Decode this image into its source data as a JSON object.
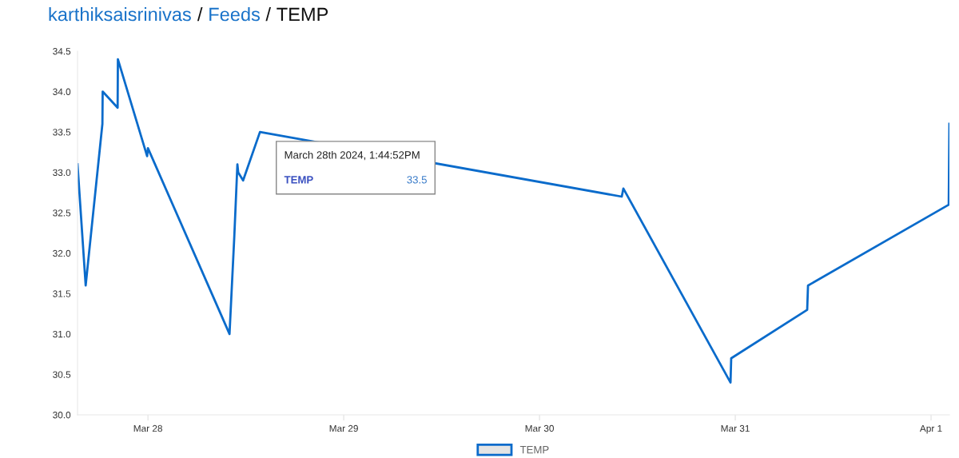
{
  "chart_data": {
    "type": "line",
    "title": "karthiksaisrinivas / Feeds / TEMP",
    "x": [
      "2024-03-27T15:22",
      "2024-03-27T16:22",
      "2024-03-27T18:25",
      "2024-03-27T18:27",
      "2024-03-27T20:17",
      "2024-03-27T20:19",
      "2024-03-27T23:54",
      "2024-03-28T00:00",
      "2024-03-28T10:00",
      "2024-03-28T10:35",
      "2024-03-28T10:58",
      "2024-03-28T11:04",
      "2024-03-28T11:40",
      "2024-03-28T13:44",
      "2024-03-30T10:05",
      "2024-03-30T10:17",
      "2024-03-30T23:25",
      "2024-03-30T23:30",
      "2024-03-31T08:49",
      "2024-03-31T08:55",
      "2024-04-01T02:10",
      "2024-04-01T02:15"
    ],
    "series": [
      {
        "name": "TEMP",
        "color": "#0a6bcb",
        "values": [
          33.1,
          31.6,
          33.6,
          34.0,
          33.8,
          34.4,
          33.2,
          33.3,
          31.0,
          32.2,
          33.1,
          33.0,
          32.9,
          33.5,
          32.7,
          32.8,
          30.4,
          30.7,
          31.3,
          31.6,
          32.6,
          33.6
        ]
      }
    ],
    "xlim": [
      "2024-03-27T15:22",
      "2024-04-01T02:15"
    ],
    "xticks": [
      {
        "value": "2024-03-28",
        "label": "Mar 28"
      },
      {
        "value": "2024-03-29",
        "label": "Mar 29"
      },
      {
        "value": "2024-03-30",
        "label": "Mar 30"
      },
      {
        "value": "2024-03-31",
        "label": "Mar 31"
      },
      {
        "value": "2024-04-01",
        "label": "Apr 1"
      }
    ],
    "ylim": [
      30,
      34.5
    ],
    "yticks": [
      {
        "value": 30,
        "label": "30.0"
      },
      {
        "value": 30.5,
        "label": "30.5"
      },
      {
        "value": 31,
        "label": "31.0"
      },
      {
        "value": 31.5,
        "label": "31.5"
      },
      {
        "value": 32,
        "label": "32.0"
      },
      {
        "value": 32.5,
        "label": "32.5"
      },
      {
        "value": 33,
        "label": "33.0"
      },
      {
        "value": 33.5,
        "label": "33.5"
      },
      {
        "value": 34,
        "label": "34.0"
      },
      {
        "value": 34.5,
        "label": "34.5"
      }
    ],
    "annotations": [
      "March 28th 2024, 1:44:52PM",
      "TEMP",
      "33.5"
    ],
    "legend": "bottom",
    "grid": false,
    "marker": "none",
    "line_style": "solid"
  }
}
